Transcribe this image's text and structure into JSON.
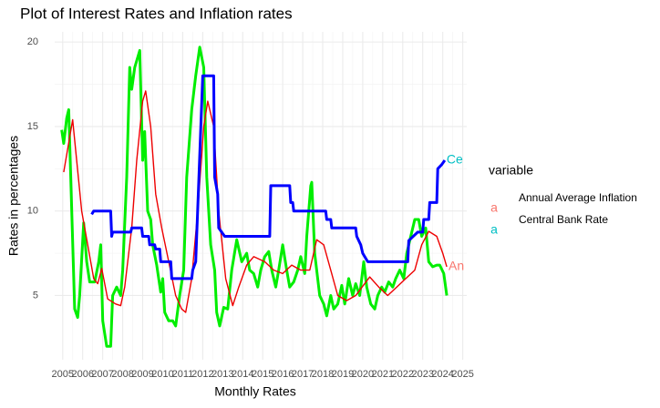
{
  "chart_data": {
    "type": "line",
    "title": "Plot of Interest Rates and Inflation rates",
    "x_label": "Monthly Rates",
    "y_label": "Rates in percentages",
    "legend_title": "variable",
    "legend_key_label": "a",
    "grid": true,
    "xlim": [
      2004.6,
      2025.2
    ],
    "xticks": [
      2005,
      2006,
      2007,
      2008,
      2009,
      2010,
      2011,
      2012,
      2013,
      2014,
      2015,
      2016,
      2017,
      2018,
      2019,
      2020,
      2021,
      2022,
      2023,
      2024,
      2025
    ],
    "ylim": [
      1.2,
      20.6
    ],
    "yticks": [
      5,
      10,
      15,
      20
    ],
    "series": [
      {
        "name": "Annual Average Inflation",
        "color": "#ee0000",
        "legend_color": "#F8766D",
        "width": 1.4,
        "end_label": "An",
        "x": [
          2005.05,
          2005.5,
          2005.95,
          2006.55,
          2006.75,
          2006.95,
          2007.25,
          2007.65,
          2007.9,
          2008.1,
          2008.45,
          2008.7,
          2009.0,
          2009.15,
          2009.4,
          2009.65,
          2009.95,
          2010.3,
          2010.65,
          2010.95,
          2011.15,
          2011.45,
          2011.75,
          2012.05,
          2012.25,
          2012.55,
          2012.8,
          2013.15,
          2013.5,
          2013.8,
          2014.2,
          2014.55,
          2015.1,
          2015.55,
          2016.0,
          2016.45,
          2016.9,
          2017.35,
          2017.7,
          2018.05,
          2018.4,
          2018.75,
          2019.2,
          2019.65,
          2020.35,
          2020.8,
          2021.25,
          2021.7,
          2022.15,
          2022.6,
          2022.95,
          2023.3,
          2023.7,
          2024.0,
          2024.2
        ],
        "values": [
          12.3,
          15.4,
          10,
          6,
          5.7,
          6.6,
          4.8,
          4.5,
          4.4,
          5.5,
          9,
          13,
          16.5,
          17.1,
          15,
          11,
          9,
          7,
          5,
          4.2,
          4,
          6,
          10,
          15,
          16.5,
          15,
          10,
          6,
          4.4,
          5.5,
          6.8,
          7.3,
          7,
          6.5,
          6.3,
          6.8,
          6.5,
          6.5,
          8.3,
          8,
          6.5,
          5,
          4.7,
          5,
          6.1,
          5.5,
          5,
          5.5,
          6,
          6.5,
          8,
          8.8,
          8.5,
          7.5,
          6.7
        ]
      },
      {
        "name": "Central Bank Rate",
        "color": "#0000ff",
        "legend_color": "#00BFC4",
        "width": 3,
        "end_label": "Ce",
        "x": [
          2006.45,
          2006.55,
          2007.4,
          2007.45,
          2007.5,
          2008.4,
          2008.45,
          2008.95,
          2009.0,
          2009.3,
          2009.35,
          2009.6,
          2009.65,
          2009.85,
          2009.9,
          2010.4,
          2010.45,
          2011.45,
          2011.5,
          2011.65,
          2012.0,
          2012.55,
          2012.6,
          2012.75,
          2012.8,
          2013.1,
          2015.35,
          2015.4,
          2016.35,
          2016.4,
          2016.5,
          2016.55,
          2018.15,
          2018.2,
          2018.4,
          2018.45,
          2019.65,
          2019.7,
          2019.9,
          2020.0,
          2020.25,
          2022.25,
          2022.3,
          2022.75,
          2023.0,
          2023.05,
          2023.3,
          2023.35,
          2023.7,
          2023.75,
          2023.95,
          2024.1
        ],
        "values": [
          9.8,
          10,
          10,
          8.5,
          8.75,
          8.75,
          9,
          9,
          8.5,
          8.5,
          8,
          8,
          7.75,
          7.75,
          7,
          7,
          6,
          6,
          6.5,
          7,
          18,
          18,
          12,
          11,
          9,
          8.5,
          8.5,
          11.5,
          11.5,
          10.5,
          10.5,
          10,
          10,
          9.5,
          9.5,
          9,
          9,
          8.5,
          8,
          7.5,
          7,
          7,
          8.25,
          8.75,
          8.75,
          9.5,
          9.5,
          10.5,
          10.5,
          12.5,
          12.75,
          13
        ]
      },
      {
        "color": "#00ee00",
        "width": 3,
        "x": [
          2004.95,
          2005.05,
          2005.2,
          2005.3,
          2005.4,
          2005.6,
          2005.75,
          2005.85,
          2006.05,
          2006.2,
          2006.35,
          2006.6,
          2006.8,
          2006.9,
          2007.0,
          2007.2,
          2007.4,
          2007.5,
          2007.7,
          2007.9,
          2008.0,
          2008.2,
          2008.35,
          2008.45,
          2008.6,
          2008.85,
          2009.0,
          2009.1,
          2009.25,
          2009.4,
          2009.5,
          2009.7,
          2009.9,
          2010.0,
          2010.1,
          2010.3,
          2010.5,
          2010.65,
          2010.85,
          2011.05,
          2011.2,
          2011.45,
          2011.65,
          2011.85,
          2012.05,
          2012.2,
          2012.4,
          2012.6,
          2012.7,
          2012.85,
          2013.05,
          2013.25,
          2013.45,
          2013.7,
          2013.95,
          2014.2,
          2014.35,
          2014.55,
          2014.75,
          2014.9,
          2015.1,
          2015.3,
          2015.45,
          2015.65,
          2015.8,
          2016.0,
          2016.2,
          2016.35,
          2016.55,
          2016.75,
          2016.9,
          2017.1,
          2017.2,
          2017.4,
          2017.45,
          2017.6,
          2017.85,
          2018.05,
          2018.2,
          2018.4,
          2018.55,
          2018.75,
          2018.95,
          2019.1,
          2019.3,
          2019.5,
          2019.65,
          2019.85,
          2020.05,
          2020.2,
          2020.4,
          2020.6,
          2020.75,
          2020.95,
          2021.1,
          2021.3,
          2021.5,
          2021.65,
          2021.85,
          2022.05,
          2022.2,
          2022.4,
          2022.6,
          2022.8,
          2022.95,
          2023.15,
          2023.3,
          2023.5,
          2023.7,
          2023.85,
          2024.05,
          2024.2
        ],
        "values": [
          14.8,
          14,
          15.5,
          16,
          12,
          4.2,
          3.7,
          5,
          9.3,
          7,
          5.8,
          5.8,
          7,
          8,
          3.5,
          2,
          2,
          5,
          5.5,
          5,
          6.5,
          12,
          18.5,
          17.2,
          18.5,
          19.5,
          13,
          14.7,
          10,
          9.5,
          8,
          6.8,
          5.2,
          6,
          4,
          3.5,
          3.5,
          3.2,
          5,
          6.5,
          12,
          16,
          18,
          19.7,
          18.5,
          12,
          8,
          6.5,
          4,
          3.2,
          4.3,
          4.2,
          6.5,
          8.3,
          7,
          7.5,
          6.5,
          6.3,
          5.5,
          6.5,
          7.3,
          7.6,
          6.5,
          5.5,
          6.5,
          8,
          6.5,
          5.5,
          5.8,
          6.5,
          7.3,
          6.3,
          8.5,
          11.5,
          11.7,
          7.5,
          5,
          4.5,
          3.8,
          5,
          4.2,
          4.5,
          5.6,
          4.5,
          6,
          5,
          5.7,
          5,
          7,
          5.5,
          4.5,
          4.2,
          5,
          5.5,
          5.2,
          5.8,
          5.5,
          6,
          6.5,
          6,
          7.5,
          8.5,
          9.5,
          9.5,
          8.5,
          9,
          7,
          6.7,
          6.8,
          6.8,
          6.3,
          5
        ]
      }
    ]
  }
}
